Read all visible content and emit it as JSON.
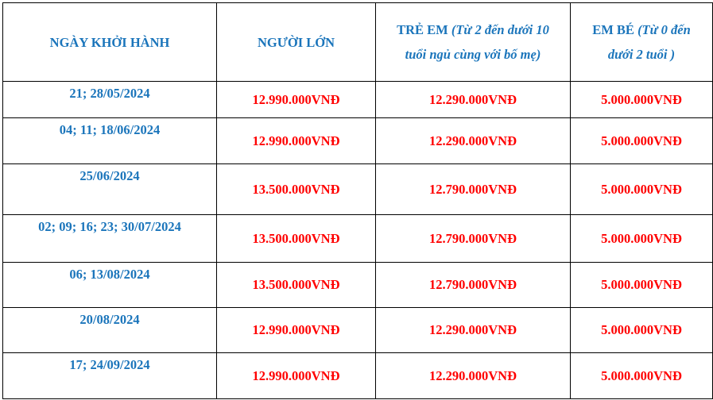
{
  "headers": [
    {
      "main": "NGÀY KHỞI HÀNH",
      "note": ""
    },
    {
      "main": "NGƯỜI LỚN",
      "note": ""
    },
    {
      "main": "TRẺ EM",
      "note": "(Từ 2 đến dưới 10 tuổi ngủ cùng với bố mẹ)"
    },
    {
      "main": "EM BÉ",
      "note": "(Từ 0 đến dưới 2 tuổi )"
    }
  ],
  "rows": [
    {
      "date": "21; 28/05/2024",
      "adult": "12.990.000VNĐ",
      "child": "12.290.000VNĐ",
      "infant": "5.000.000VNĐ"
    },
    {
      "date": "04; 11; 18/06/2024",
      "adult": "12.990.000VNĐ",
      "child": "12.290.000VNĐ",
      "infant": "5.000.000VNĐ"
    },
    {
      "date": "25/06/2024",
      "adult": "13.500.000VNĐ",
      "child": "12.790.000VNĐ",
      "infant": "5.000.000VNĐ"
    },
    {
      "date": "02; 09; 16; 23; 30/07/2024",
      "adult": "13.500.000VNĐ",
      "child": "12.790.000VNĐ",
      "infant": "5.000.000VNĐ"
    },
    {
      "date": "06; 13/08/2024",
      "adult": "13.500.000VNĐ",
      "child": "12.790.000VNĐ",
      "infant": "5.000.000VNĐ"
    },
    {
      "date": "20/08/2024",
      "adult": "12.990.000VNĐ",
      "child": "12.290.000VNĐ",
      "infant": "5.000.000VNĐ"
    },
    {
      "date": "17; 24/09/2024",
      "adult": "12.990.000VNĐ",
      "child": "12.290.000VNĐ",
      "infant": "5.000.000VNĐ"
    }
  ],
  "colors": {
    "header_text": "#1b75bb",
    "date_text": "#1b75bb",
    "price_text": "#ff0000",
    "border": "#000000"
  }
}
